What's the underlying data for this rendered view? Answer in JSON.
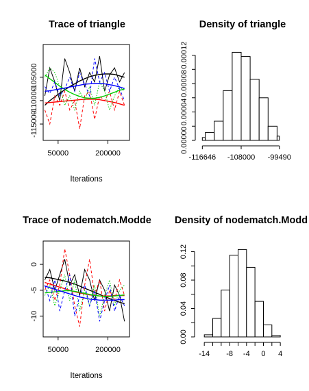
{
  "chart_data": [
    {
      "id": "trace_triangle",
      "type": "line",
      "title": "Trace of triangle",
      "xlabel": "Iterations",
      "ylabel": "",
      "xlim": [
        5000,
        265000
      ],
      "ylim": [
        -118500,
        -98000
      ],
      "xticks": [
        50000,
        200000
      ],
      "xtick_labels": [
        "50000",
        "200000"
      ],
      "yticks": [
        -105000,
        -110000,
        -115000
      ],
      "ytick_labels": [
        "-105000",
        "-110000",
        "-115000"
      ],
      "major_yticks": [
        -105000,
        -115000
      ],
      "series": [
        {
          "color": "#000000",
          "style": "solid",
          "x": [
            10000,
            25000,
            40000,
            55000,
            70000,
            85000,
            100000,
            115000,
            130000,
            145000,
            160000,
            175000,
            190000,
            205000,
            220000,
            235000,
            250000
          ],
          "y": [
            -109000,
            -103000,
            -106000,
            -110000,
            -101000,
            -104000,
            -108000,
            -103000,
            -107000,
            -104000,
            -106000,
            -100500,
            -108000,
            -104500,
            -103000,
            -106000,
            -104000
          ],
          "smooth": [
            -111000,
            -110000,
            -109200,
            -108400,
            -107700,
            -107000,
            -106400,
            -105800,
            -105300,
            -104900,
            -104600,
            -104400,
            -104300,
            -104300,
            -104400,
            -104700,
            -105000
          ]
        },
        {
          "color": "#ff0000",
          "style": "dashed",
          "x": [
            10000,
            25000,
            40000,
            55000,
            70000,
            85000,
            100000,
            115000,
            130000,
            145000,
            160000,
            175000,
            190000,
            205000,
            220000,
            235000,
            250000
          ],
          "y": [
            -112000,
            -115000,
            -109000,
            -111000,
            -108000,
            -112000,
            -110000,
            -116000,
            -109000,
            -108000,
            -114000,
            -109000,
            -110000,
            -108000,
            -112000,
            -108000,
            -111000
          ],
          "smooth": [
            -110500,
            -110400,
            -110300,
            -110200,
            -110100,
            -110000,
            -109900,
            -109800,
            -109700,
            -109700,
            -109700,
            -109800,
            -110000,
            -110200,
            -110400,
            -110700,
            -111000
          ]
        },
        {
          "color": "#00cd00",
          "style": "dotted",
          "x": [
            10000,
            25000,
            40000,
            55000,
            70000,
            85000,
            100000,
            115000,
            130000,
            145000,
            160000,
            175000,
            190000,
            205000,
            220000,
            235000,
            250000
          ],
          "y": [
            -105000,
            -103000,
            -104000,
            -107000,
            -111000,
            -109000,
            -112000,
            -108000,
            -110000,
            -107000,
            -111000,
            -106000,
            -108000,
            -112000,
            -109000,
            -107000,
            -108000
          ],
          "smooth": [
            -104500,
            -105300,
            -106100,
            -106900,
            -107600,
            -108200,
            -108700,
            -109100,
            -109400,
            -109500,
            -109500,
            -109300,
            -109000,
            -108600,
            -108200,
            -107800,
            -107500
          ]
        },
        {
          "color": "#0000ff",
          "style": "dashed",
          "x": [
            10000,
            25000,
            40000,
            55000,
            70000,
            85000,
            100000,
            115000,
            130000,
            145000,
            160000,
            175000,
            190000,
            205000,
            220000,
            235000,
            250000
          ],
          "y": [
            -107000,
            -108500,
            -106000,
            -109000,
            -107500,
            -105000,
            -108000,
            -104000,
            -106500,
            -109000,
            -101000,
            -106000,
            -104000,
            -108000,
            -105000,
            -107500,
            -110000
          ],
          "smooth": [
            -108000,
            -107900,
            -107700,
            -107500,
            -107300,
            -107100,
            -106900,
            -106700,
            -106500,
            -106400,
            -106300,
            -106300,
            -106400,
            -106600,
            -106800,
            -107100,
            -107400
          ]
        }
      ]
    },
    {
      "id": "density_triangle",
      "type": "bar",
      "title": "Density of triangle",
      "xlim": [
        -117000,
        -99000
      ],
      "ylim": [
        0,
        0.000135
      ],
      "xticks": [
        -116646,
        -108000,
        -99490
      ],
      "xtick_labels": [
        "-116646",
        "-108000",
        "-99490"
      ],
      "yticks": [
        0,
        2e-05,
        4e-05,
        6e-05,
        8e-05,
        0.0001,
        0.00012
      ],
      "ytick_labels": [
        "0.00000",
        "",
        "0.00004",
        "",
        "0.00008",
        "",
        "0.00012"
      ],
      "bin_edges": [
        -116646,
        -116000,
        -114000,
        -112000,
        -110000,
        -108000,
        -106000,
        -104000,
        -102000,
        -100000,
        -99490
      ],
      "values": [
        4e-06,
        1.1e-05,
        2.7e-05,
        7e-05,
        0.000124,
        0.000118,
        8.6e-05,
        6e-05,
        2e-05,
        6e-06
      ]
    },
    {
      "id": "trace_nodematch",
      "type": "line",
      "title": "Trace of nodematch.Modde",
      "xlabel": "Iterations",
      "ylabel": "",
      "xlim": [
        5000,
        265000
      ],
      "ylim": [
        -14,
        4.5
      ],
      "xticks": [
        50000,
        200000
      ],
      "xtick_labels": [
        "50000",
        "200000"
      ],
      "yticks": [
        0,
        -5,
        -10
      ],
      "ytick_labels": [
        "0",
        "-5",
        "-10"
      ],
      "series": [
        {
          "color": "#000000",
          "style": "solid",
          "x": [
            10000,
            25000,
            40000,
            55000,
            70000,
            85000,
            100000,
            115000,
            130000,
            145000,
            160000,
            175000,
            190000,
            205000,
            220000,
            235000,
            250000
          ],
          "y": [
            -3,
            -1,
            -5,
            -2,
            1,
            -4,
            -2,
            -6,
            -1,
            -3,
            -7,
            -3,
            -5,
            -9,
            -4,
            -6,
            -11
          ],
          "smooth": [
            -2.5,
            -2.6,
            -2.8,
            -3.0,
            -3.2,
            -3.5,
            -3.8,
            -4.2,
            -4.6,
            -5.0,
            -5.4,
            -5.8,
            -6.2,
            -6.6,
            -7.0,
            -7.3,
            -7.6
          ]
        },
        {
          "color": "#ff0000",
          "style": "dashed",
          "x": [
            10000,
            25000,
            40000,
            55000,
            70000,
            85000,
            100000,
            115000,
            130000,
            145000,
            160000,
            175000,
            190000,
            205000,
            220000,
            235000,
            250000
          ],
          "y": [
            -5,
            -3,
            -7,
            -4,
            3,
            -2,
            -8,
            -12,
            -4,
            1,
            -6,
            -3,
            -9,
            -5,
            -7,
            -3,
            -6
          ],
          "smooth": [
            -3.5,
            -3.8,
            -4.1,
            -4.4,
            -4.7,
            -5.0,
            -5.3,
            -5.5,
            -5.7,
            -5.9,
            -6.0,
            -6.1,
            -6.1,
            -6.1,
            -6.0,
            -6.0,
            -6.0
          ]
        },
        {
          "color": "#00cd00",
          "style": "dotted",
          "x": [
            10000,
            25000,
            40000,
            55000,
            70000,
            85000,
            100000,
            115000,
            130000,
            145000,
            160000,
            175000,
            190000,
            205000,
            220000,
            235000,
            250000
          ],
          "y": [
            -6,
            -4,
            -8,
            -5,
            -2,
            -7,
            -3,
            -9,
            -5,
            -8,
            -4,
            -10,
            -6,
            -3,
            -8,
            -5,
            -4
          ],
          "smooth": [
            -5.5,
            -5.4,
            -5.3,
            -5.2,
            -5.1,
            -5.1,
            -5.2,
            -5.4,
            -5.6,
            -5.8,
            -6.0,
            -6.1,
            -6.2,
            -6.2,
            -6.1,
            -6.0,
            -5.9
          ]
        },
        {
          "color": "#0000ff",
          "style": "dashed",
          "x": [
            10000,
            25000,
            40000,
            55000,
            70000,
            85000,
            100000,
            115000,
            130000,
            145000,
            160000,
            175000,
            190000,
            205000,
            220000,
            235000,
            250000
          ],
          "y": [
            -4,
            -7,
            -3,
            -9,
            -5,
            -2,
            -10,
            -6,
            -4,
            -8,
            -5,
            -11,
            -7,
            -4,
            -9,
            -6,
            -8
          ],
          "smooth": [
            -4.2,
            -4.5,
            -4.8,
            -5.1,
            -5.4,
            -5.7,
            -6.0,
            -6.3,
            -6.5,
            -6.7,
            -6.8,
            -6.9,
            -6.9,
            -6.9,
            -6.9,
            -6.8,
            -6.8
          ]
        }
      ]
    },
    {
      "id": "density_nodematch",
      "type": "bar",
      "title": "Density of nodematch.Modd",
      "xlim": [
        -15,
        4.3
      ],
      "ylim": [
        0,
        0.135
      ],
      "xticks": [
        -14,
        -8,
        -4,
        0,
        4
      ],
      "xtick_labels": [
        "-14",
        "-8",
        "-4",
        "0",
        "4"
      ],
      "minor_xticks": [
        -12,
        -10,
        -6,
        -2,
        2
      ],
      "yticks": [
        0,
        0.02,
        0.04,
        0.06,
        0.08,
        0.1,
        0.12
      ],
      "ytick_labels": [
        "0.00",
        "",
        "0.04",
        "",
        "0.08",
        "",
        "0.12"
      ],
      "bin_edges": [
        -14,
        -12,
        -10,
        -8,
        -6,
        -4,
        -2,
        0,
        2,
        4
      ],
      "values": [
        0.003,
        0.026,
        0.066,
        0.115,
        0.123,
        0.098,
        0.05,
        0.017,
        0.002
      ]
    }
  ]
}
